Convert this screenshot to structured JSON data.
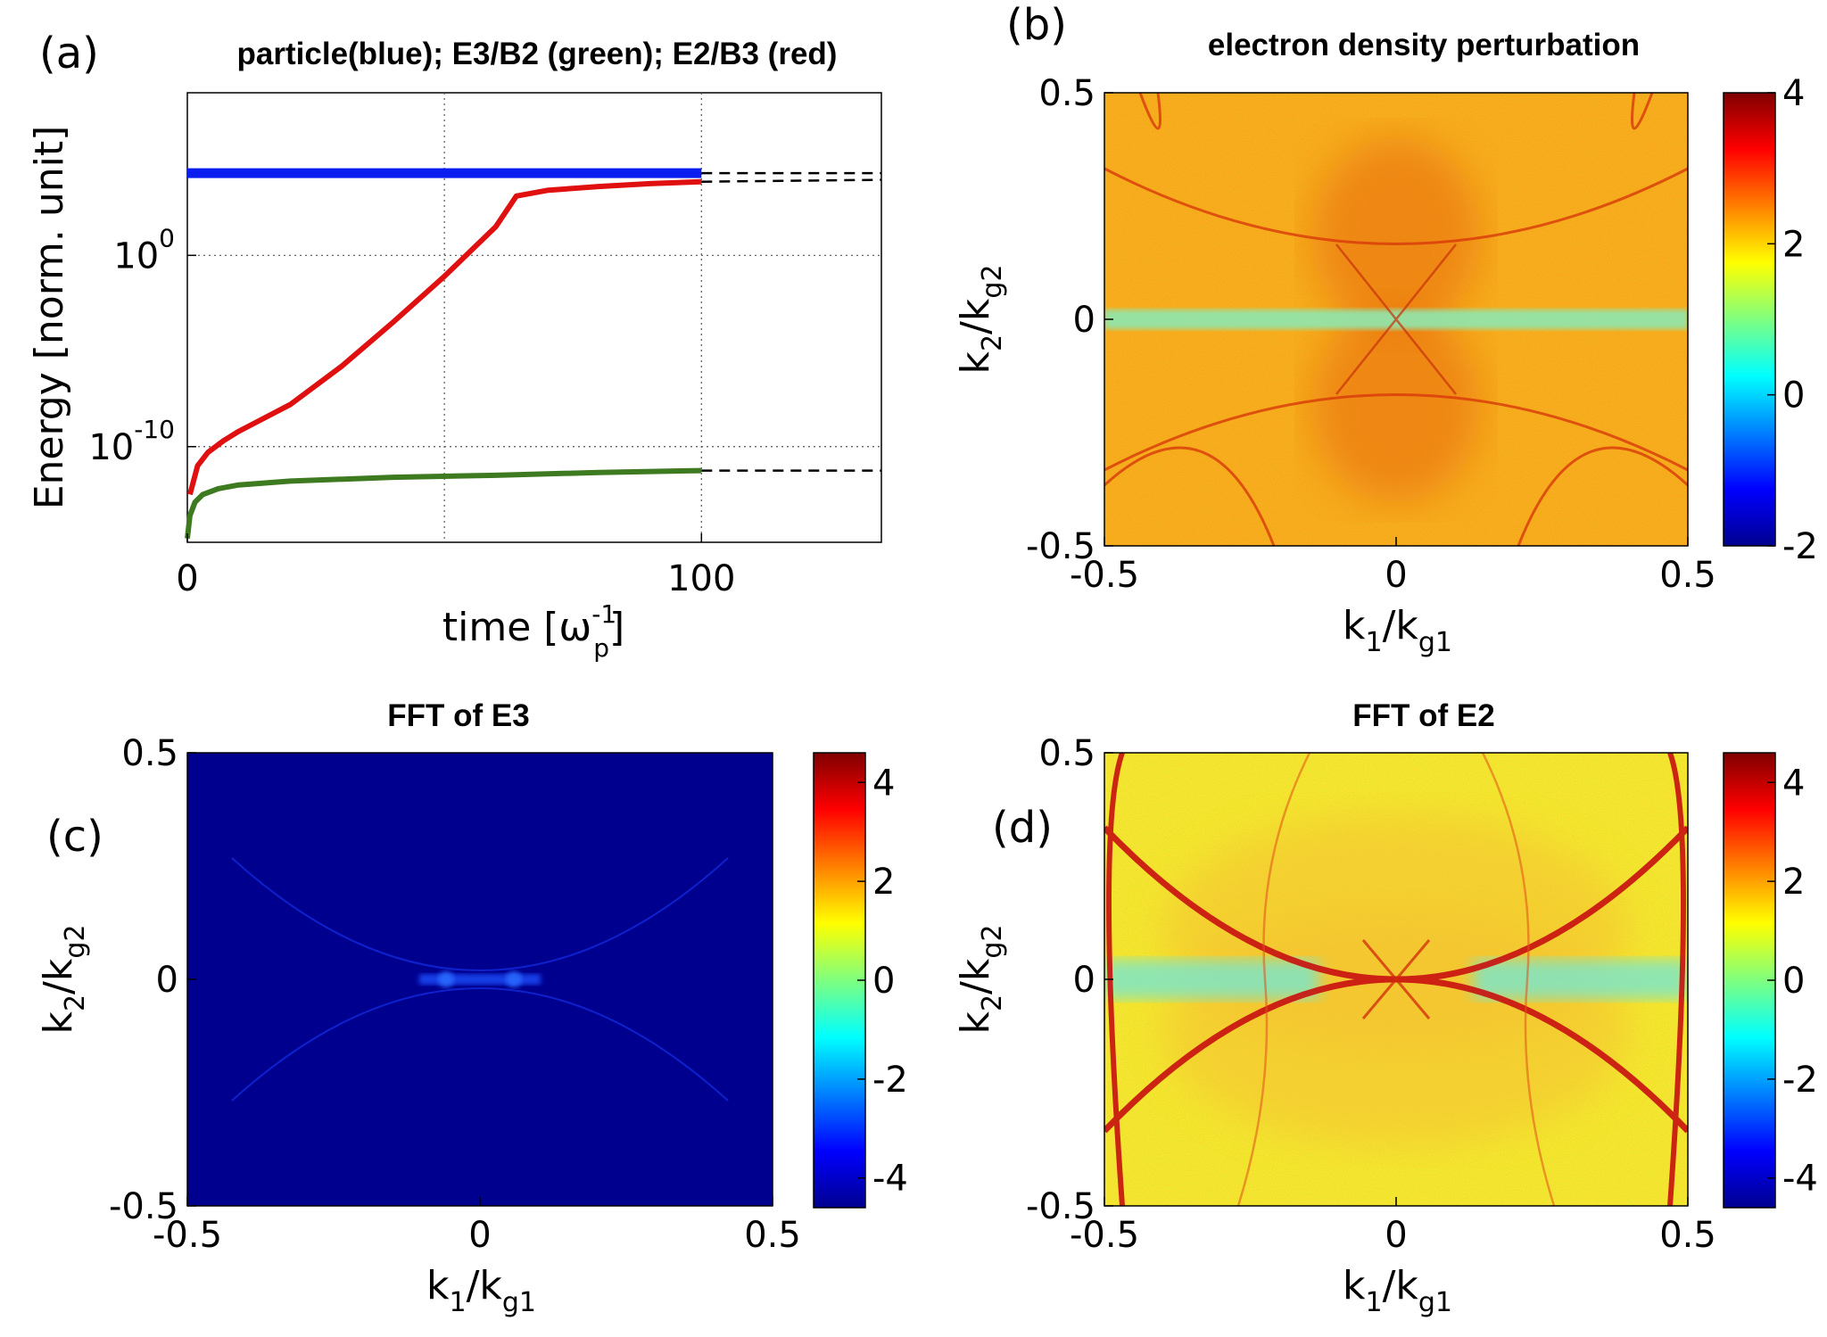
{
  "figure": {
    "labels": {
      "a": "(a)",
      "b": "(b)",
      "c": "(c)",
      "d": "(d)"
    }
  },
  "chart_data": [
    {
      "id": "a",
      "type": "line",
      "title": "particle(blue); E3/B2 (green); E2/B3 (red)",
      "xlabel": {
        "main": "time [ω",
        "sub": "p",
        "sup": "-1",
        "close": "]"
      },
      "ylabel": "Energy [norm. unit]",
      "xlim": [
        0,
        135
      ],
      "ylog10lim": [
        -15,
        8.5
      ],
      "xticks": [
        {
          "v": 0,
          "label": "0"
        },
        {
          "v": 100,
          "label": "100"
        }
      ],
      "yticks": [
        {
          "v": 0,
          "base": "10",
          "exp": "0"
        },
        {
          "v": -10,
          "base": "10",
          "exp": "-10"
        }
      ],
      "xgrid": [
        50,
        100
      ],
      "ygrid": [
        0,
        -10
      ],
      "series": [
        {
          "name": "particle",
          "color": "#0a1ef0",
          "x": [
            0,
            100
          ],
          "log10y": [
            4.3,
            4.3
          ]
        },
        {
          "name": "E2/B3",
          "color": "#e01010",
          "x": [
            0.5,
            2,
            4,
            7,
            10,
            15,
            20,
            30,
            40,
            50,
            60,
            64,
            70,
            80,
            90,
            100
          ],
          "log10y": [
            -12.5,
            -11,
            -10.3,
            -9.7,
            -9.2,
            -8.5,
            -7.8,
            -5.8,
            -3.5,
            -1.1,
            1.5,
            3.1,
            3.4,
            3.6,
            3.75,
            3.85
          ]
        },
        {
          "name": "E3/B2",
          "color": "#3e7a20",
          "x": [
            0,
            0.5,
            1.5,
            3,
            6,
            10,
            20,
            40,
            60,
            80,
            100
          ],
          "log10y": [
            -14.8,
            -13.6,
            -12.9,
            -12.5,
            -12.2,
            -12.0,
            -11.8,
            -11.6,
            -11.5,
            -11.35,
            -11.25
          ]
        },
        {
          "name": "particle-extrapolation",
          "color": "#000000",
          "dashed": true,
          "x": [
            100,
            135
          ],
          "log10y": [
            4.3,
            4.3
          ]
        },
        {
          "name": "E2/B3-extrapolation",
          "color": "#000000",
          "dashed": true,
          "x": [
            100,
            135
          ],
          "log10y": [
            3.85,
            3.95
          ]
        },
        {
          "name": "E3/B2-extrapolation",
          "color": "#000000",
          "dashed": true,
          "x": [
            100,
            135
          ],
          "log10y": [
            -11.25,
            -11.25
          ]
        }
      ]
    },
    {
      "id": "b",
      "type": "heatmap",
      "title": "electron density perturbation",
      "xlabel": {
        "main": "k",
        "sub1": "1",
        "mid": "/k",
        "sub2": "g1"
      },
      "ylabel": {
        "main": "k",
        "sub1": "2",
        "mid": "/k",
        "sub2": "g2"
      },
      "xlim": [
        -0.5,
        0.5
      ],
      "ylim": [
        -0.5,
        0.5
      ],
      "xticks": [
        "-0.5",
        "0",
        "0.5"
      ],
      "yticks": [
        "0.5",
        "0",
        "-0.5"
      ],
      "clim": [
        -2,
        4
      ],
      "cbticks": [
        {
          "v": 4,
          "label": "4"
        },
        {
          "v": 2,
          "label": "2"
        },
        {
          "v": 0,
          "label": "0"
        },
        {
          "v": -2,
          "label": "-2"
        }
      ],
      "background_level": 2.7
    },
    {
      "id": "c",
      "type": "heatmap",
      "title": "FFT of E3",
      "xlabel": {
        "main": "k",
        "sub1": "1",
        "mid": "/k",
        "sub2": "g1"
      },
      "ylabel": {
        "main": "k",
        "sub1": "2",
        "mid": "/k",
        "sub2": "g2"
      },
      "xlim": [
        -0.5,
        0.5
      ],
      "ylim": [
        -0.5,
        0.5
      ],
      "xticks": [
        "-0.5",
        "0",
        "0.5"
      ],
      "yticks": [
        "0.5",
        "0",
        "-0.5"
      ],
      "clim": [
        -4.6,
        4.6
      ],
      "cbticks": [
        {
          "v": 4,
          "label": "4"
        },
        {
          "v": 2,
          "label": "2"
        },
        {
          "v": 0,
          "label": "0"
        },
        {
          "v": -2,
          "label": "-2"
        },
        {
          "v": -4,
          "label": "-4"
        }
      ],
      "background_level": -4.6
    },
    {
      "id": "d",
      "type": "heatmap",
      "title": "FFT of E2",
      "xlabel": {
        "main": "k",
        "sub1": "1",
        "mid": "/k",
        "sub2": "g1"
      },
      "ylabel": {
        "main": "k",
        "sub1": "2",
        "mid": "/k",
        "sub2": "g2"
      },
      "xlim": [
        -0.5,
        0.5
      ],
      "ylim": [
        -0.5,
        0.5
      ],
      "xticks": [
        "-0.5",
        "0",
        "0.5"
      ],
      "yticks": [
        "0.5",
        "0",
        "-0.5"
      ],
      "clim": [
        -4.6,
        4.6
      ],
      "cbticks": [
        {
          "v": 4,
          "label": "4"
        },
        {
          "v": 2,
          "label": "2"
        },
        {
          "v": 0,
          "label": "0"
        },
        {
          "v": -2,
          "label": "-2"
        },
        {
          "v": -4,
          "label": "-4"
        }
      ],
      "background_level": 1.8
    }
  ]
}
